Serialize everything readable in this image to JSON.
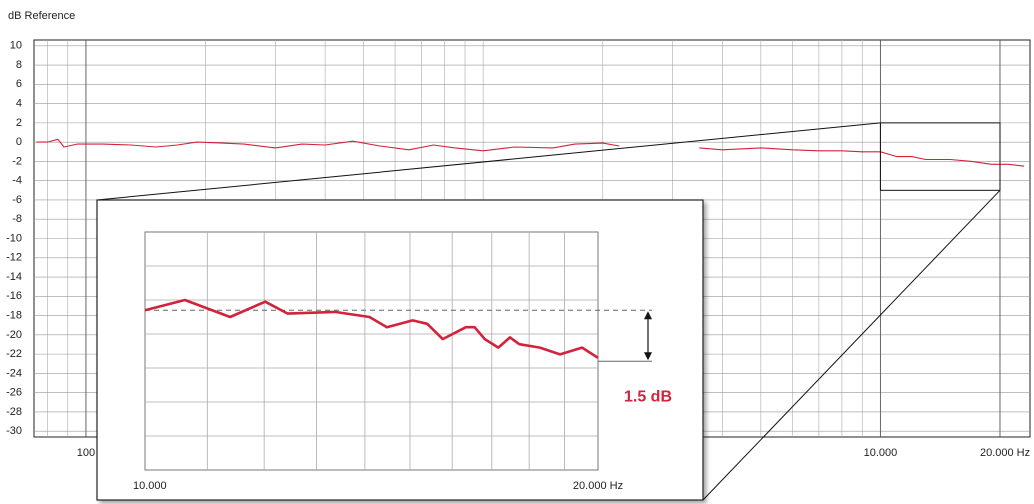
{
  "chart_data": [
    {
      "type": "line",
      "title": "dB Reference",
      "log_x": true,
      "xlim": [
        74,
        23800
      ],
      "ylim": [
        -30.6,
        10.6
      ],
      "xticks": [
        100,
        {
          "value": 10000,
          "label": "10.000"
        },
        {
          "value": 20000,
          "label": "20.000 Hz"
        }
      ],
      "xgrid": [
        80,
        90,
        200,
        300,
        400,
        500,
        600,
        700,
        800,
        900,
        1000,
        2000,
        3000,
        4000,
        5000,
        6000,
        7000,
        8000,
        9000
      ],
      "yticks": [
        10,
        8,
        6,
        4,
        2,
        0,
        -2,
        -4,
        -6,
        -8,
        -10,
        -12,
        -14,
        -16,
        -18,
        -20,
        -22,
        -24,
        -26,
        -28,
        -30
      ],
      "grid": true,
      "series": [
        {
          "color": "#d2233c",
          "x": [
            75,
            80,
            85,
            88,
            95,
            110,
            130,
            150,
            170,
            190,
            220,
            250,
            300,
            350,
            400,
            470,
            550,
            650,
            750,
            850,
            1000,
            1200,
            1500,
            1700,
            2000,
            2200,
            2800,
            3500,
            4000,
            5000,
            6000,
            7000,
            8000,
            9000,
            10000,
            11000,
            12000,
            13000,
            15000,
            17000,
            19000,
            21000,
            23000
          ],
          "values": [
            0,
            0,
            0.3,
            -0.5,
            -0.2,
            -0.2,
            -0.3,
            -0.5,
            -0.3,
            0,
            -0.1,
            -0.2,
            -0.6,
            -0.2,
            -0.3,
            0.1,
            -0.4,
            -0.8,
            -0.3,
            -0.6,
            -0.9,
            -0.5,
            -0.6,
            -0.2,
            -0.1,
            -0.4,
            null,
            -0.6,
            -0.8,
            -0.6,
            -0.8,
            -0.9,
            -0.9,
            -1.0,
            -1.0,
            -1.5,
            -1.5,
            -1.8,
            -1.8,
            -2.0,
            -2.3,
            -2.3,
            -2.5
          ]
        }
      ]
    },
    {
      "type": "line",
      "log_x": true,
      "xlim": [
        10000,
        20000
      ],
      "ylim": [
        -5,
        2
      ],
      "xticks": [
        {
          "value": 10000,
          "label": "10.000"
        },
        {
          "value": 20000,
          "label": "20.000 Hz"
        }
      ],
      "xgrid": [
        11000,
        12000,
        13000,
        14000,
        15000,
        16000,
        17000,
        18000,
        19000
      ],
      "ygrid": [
        -4,
        -3,
        -2,
        -1,
        0,
        1
      ],
      "reference": -0.3,
      "annotation": {
        "label": "1.5 dB",
        "value": 1.5
      },
      "series": [
        {
          "color": "#d2233c",
          "x": [
            10000,
            10630,
            11390,
            12020,
            12440,
            13370,
            14100,
            14480,
            15060,
            15400,
            15770,
            16340,
            16560,
            16820,
            17170,
            17480,
            17730,
            18300,
            18870,
            19520,
            20000
          ],
          "values": [
            -0.3,
            0.0,
            -0.5,
            -0.05,
            -0.4,
            -0.35,
            -0.5,
            -0.8,
            -0.6,
            -0.7,
            -1.15,
            -0.8,
            -0.8,
            -1.15,
            -1.4,
            -1.1,
            -1.3,
            -1.4,
            -1.6,
            -1.4,
            -1.7
          ]
        }
      ]
    }
  ]
}
